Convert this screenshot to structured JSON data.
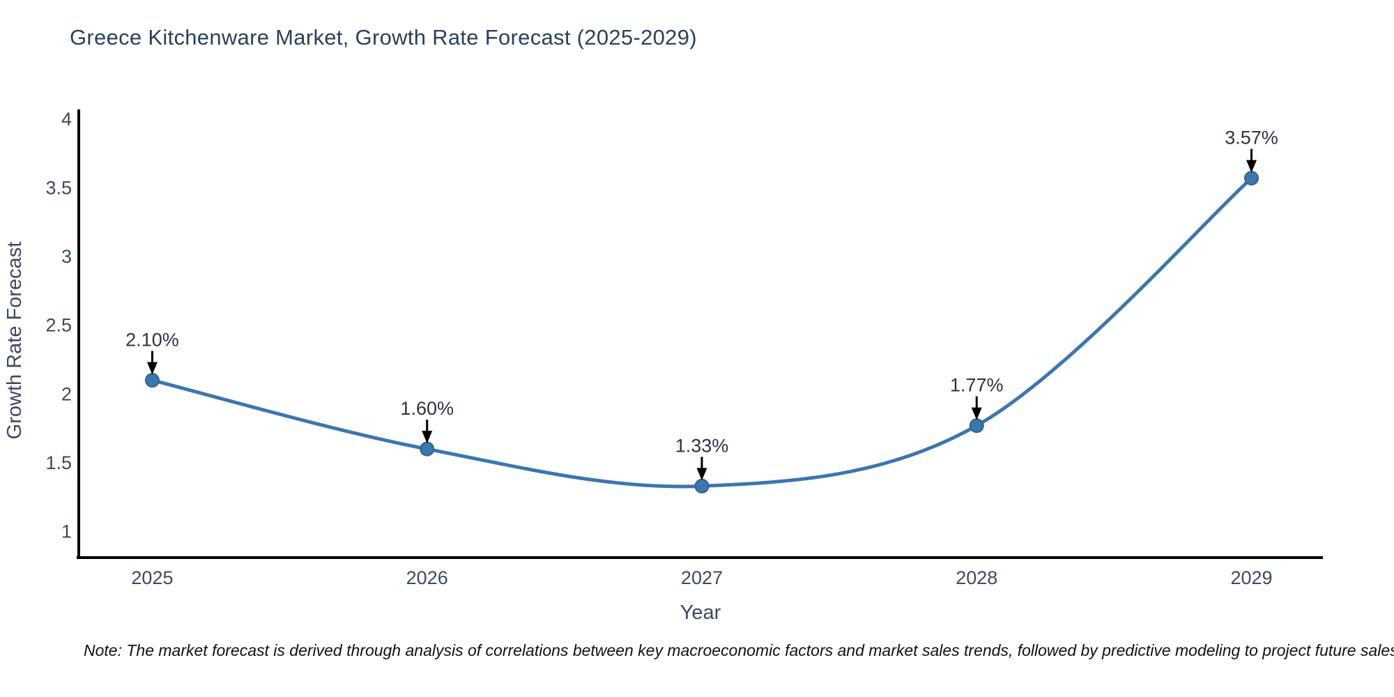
{
  "header": {
    "title": "Greece Kitchenware Market, Growth Rate Forecast (2025-2029)"
  },
  "footnote": {
    "text": "Note: The market forecast is derived through analysis of correlations between key macroeconomic factors and market sales trends, followed by predictive modeling to project future sales"
  },
  "chart_data": {
    "type": "line",
    "title": "Greece Kitchenware Market, Growth Rate Forecast (2025-2029)",
    "x": [
      2025,
      2026,
      2027,
      2028,
      2029
    ],
    "series": [
      {
        "name": "Growth Rate Forecast",
        "values": [
          2.1,
          1.6,
          1.33,
          1.77,
          3.57
        ]
      }
    ],
    "point_labels": [
      "2.10%",
      "1.60%",
      "1.33%",
      "1.77%",
      "3.57%"
    ],
    "xlabel": "Year",
    "ylabel": "Growth Rate Forecast",
    "xtick_labels": [
      "2025",
      "2026",
      "2027",
      "2028",
      "2029"
    ],
    "ytick_values": [
      4,
      3.5,
      3,
      2.5,
      2,
      1.5,
      1
    ],
    "ytick_labels": [
      "4",
      "3.5",
      "3",
      "2.5",
      "2",
      "1.5",
      "1"
    ],
    "xlim": [
      2024.73,
      2029.26
    ],
    "ylim": [
      0.81,
      4.07
    ],
    "grid": false,
    "legend_position": "none",
    "curve": "spline",
    "annotation_arrows": true,
    "colors": {
      "line": "#3c76af",
      "marker_fill": "#3c76af",
      "marker_edge": "#31628f",
      "axis_line": "#000000",
      "title_text": "#2a3f5f",
      "tick_text": "#3b4a5f",
      "annotation_text": "#2c3341",
      "arrow": "#000000",
      "background": "#ffffff"
    }
  }
}
